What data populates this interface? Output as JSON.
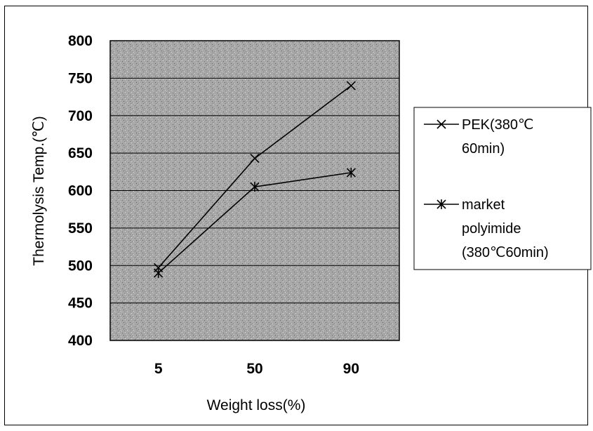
{
  "chart_data": {
    "type": "line",
    "title": "",
    "xlabel": "Weight loss(%)",
    "ylabel": "Thermolysis Temp.(℃)",
    "categories": [
      "5",
      "50",
      "90"
    ],
    "ylim": [
      400,
      800
    ],
    "yticks": [
      400,
      450,
      500,
      550,
      600,
      650,
      700,
      750,
      800
    ],
    "grid": true,
    "legend_position": "right",
    "series": [
      {
        "name_lines": [
          "PEK(380℃",
          "60min)"
        ],
        "marker": "x",
        "values": [
          497,
          643,
          740
        ],
        "color": "#000000"
      },
      {
        "name_lines": [
          "market",
          "polyimide",
          "(380℃60min)"
        ],
        "marker": "asterisk",
        "values": [
          490,
          605,
          624
        ],
        "color": "#000000"
      }
    ],
    "plot_background": "#a9a9a9"
  }
}
